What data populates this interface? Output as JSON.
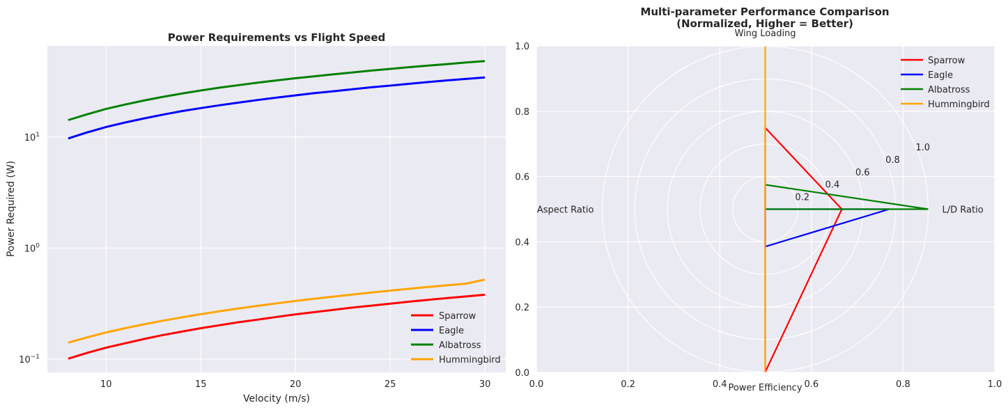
{
  "chart_data": [
    {
      "type": "line",
      "title": "Power Requirements vs Flight Speed",
      "xlabel": "Velocity (m/s)",
      "ylabel": "Power Required (W)",
      "xlim": [
        6.9,
        31.1
      ],
      "ylim": [
        0.076,
        66
      ],
      "yscale": "log",
      "grid": true,
      "legend_position": "lower right",
      "xticks": [
        10,
        15,
        20,
        25,
        30
      ],
      "xtick_labels": [
        "10",
        "15",
        "20",
        "25",
        "30"
      ],
      "yticks": [
        0.1,
        1,
        10
      ],
      "ytick_labels": [
        [
          "10",
          "−1"
        ],
        [
          "10",
          "0"
        ],
        [
          "10",
          "1"
        ]
      ],
      "x": [
        8,
        9,
        10,
        11,
        12,
        13,
        14,
        15,
        16,
        17,
        18,
        19,
        20,
        21,
        22,
        23,
        24,
        25,
        26,
        27,
        28,
        29,
        30
      ],
      "series": [
        {
          "name": "Sparrow",
          "color": "#ff0000",
          "values": [
            0.101,
            0.114,
            0.127,
            0.139,
            0.152,
            0.165,
            0.177,
            0.19,
            0.202,
            0.215,
            0.227,
            0.24,
            0.253,
            0.265,
            0.278,
            0.291,
            0.303,
            0.316,
            0.329,
            0.342,
            0.355,
            0.367,
            0.38
          ]
        },
        {
          "name": "Eagle",
          "color": "#0000ff",
          "values": [
            9.7,
            11.0,
            12.3,
            13.5,
            14.7,
            15.9,
            17.1,
            18.2,
            19.3,
            20.4,
            21.5,
            22.6,
            23.7,
            24.8,
            25.8,
            26.9,
            28.0,
            29.0,
            30.1,
            31.2,
            32.3,
            33.3,
            34.4
          ]
        },
        {
          "name": "Albatross",
          "color": "#008000",
          "values": [
            14.2,
            16.0,
            17.9,
            19.6,
            21.3,
            23.0,
            24.6,
            26.2,
            27.8,
            29.3,
            30.8,
            32.3,
            33.8,
            35.2,
            36.7,
            38.1,
            39.6,
            41.0,
            42.5,
            43.9,
            45.3,
            46.8,
            48.2
          ]
        },
        {
          "name": "Hummingbird",
          "color": "#ffa500",
          "values": [
            0.141,
            0.157,
            0.174,
            0.19,
            0.206,
            0.222,
            0.238,
            0.254,
            0.27,
            0.286,
            0.302,
            0.318,
            0.334,
            0.35,
            0.366,
            0.382,
            0.398,
            0.414,
            0.43,
            0.446,
            0.462,
            0.478,
            0.52
          ]
        }
      ]
    },
    {
      "type": "radar",
      "title": "Multi-parameter Performance Comparison",
      "subtitle": "(Normalized, Higher = Better)",
      "axes": [
        "Wing Loading",
        "L/D Ratio",
        "Power Efficiency",
        "Aspect Ratio"
      ],
      "radial_ticks": [
        "0.2",
        "0.4",
        "0.6",
        "0.8",
        "1.0"
      ],
      "cartesian_ticks": [
        "0.0",
        "0.2",
        "0.4",
        "0.6",
        "0.8",
        "1.0"
      ],
      "grid": true,
      "legend_position": "upper right",
      "series": [
        {
          "name": "Sparrow",
          "color": "#ff0000",
          "values": [
            0.5,
            0.47,
            1.0,
            0.0
          ]
        },
        {
          "name": "Eagle",
          "color": "#0000ff",
          "values": [
            0.0,
            0.76,
            0.23,
            0.0
          ]
        },
        {
          "name": "Albatross",
          "color": "#008000",
          "values": [
            0.15,
            1.0,
            0.0,
            0.0
          ]
        },
        {
          "name": "Hummingbird",
          "color": "#ffa500",
          "values": [
            1.0,
            0.0,
            1.0,
            0.0
          ]
        }
      ]
    }
  ]
}
